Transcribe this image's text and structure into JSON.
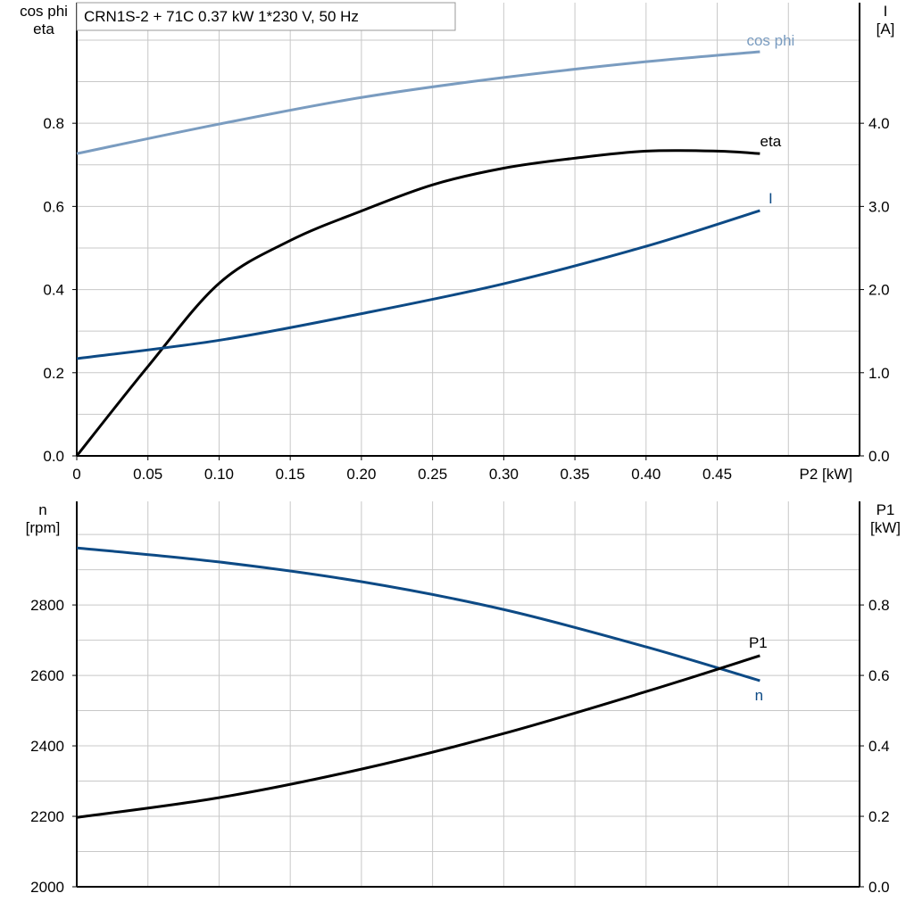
{
  "title": "CRN1S-2 + 71C   0.37 kW   1*230 V, 50 Hz",
  "colors": {
    "cos_phi": "#7a9cc0",
    "eta": "#000000",
    "I": "#0d4a85",
    "n": "#0d4a85",
    "P1": "#000000",
    "grid": "#c8c8c8"
  },
  "chart_data": [
    {
      "type": "line",
      "xlabel": "P2 [kW]",
      "ylabel_left": [
        "cos phi",
        "eta"
      ],
      "ylabel_right": [
        "I",
        "[A]"
      ],
      "xlim": [
        0,
        0.55
      ],
      "ylim_left": [
        0,
        1.09
      ],
      "ylim_right": [
        0,
        5.45
      ],
      "xticks": [
        "0",
        "0.05",
        "0.10",
        "0.15",
        "0.20",
        "0.25",
        "0.30",
        "0.35",
        "0.40",
        "0.45"
      ],
      "yticks_left": [
        "0.0",
        "0.2",
        "0.4",
        "0.6",
        "0.8"
      ],
      "yticks_right": [
        "0.0",
        "1.0",
        "2.0",
        "3.0",
        "4.0"
      ],
      "grid": true,
      "series": [
        {
          "name": "cos phi",
          "axis": "left",
          "x": [
            0,
            0.1,
            0.2,
            0.3,
            0.4,
            0.48
          ],
          "y": [
            0.727,
            0.798,
            0.862,
            0.91,
            0.948,
            0.972
          ]
        },
        {
          "name": "eta",
          "axis": "left",
          "x": [
            0,
            0.05,
            0.1,
            0.15,
            0.2,
            0.25,
            0.3,
            0.35,
            0.4,
            0.45,
            0.48
          ],
          "y": [
            0,
            0.215,
            0.415,
            0.518,
            0.589,
            0.652,
            0.692,
            0.716,
            0.733,
            0.733,
            0.727
          ]
        },
        {
          "name": "I",
          "axis": "right",
          "x": [
            0,
            0.1,
            0.2,
            0.3,
            0.4,
            0.48
          ],
          "y": [
            1.17,
            1.39,
            1.71,
            2.07,
            2.52,
            2.95
          ]
        }
      ]
    },
    {
      "type": "line",
      "ylabel_left": [
        "n",
        "[rpm]"
      ],
      "ylabel_right": [
        "P1",
        "[kW]"
      ],
      "xlim": [
        0,
        0.55
      ],
      "ylim_left": [
        2000,
        3094
      ],
      "ylim_right": [
        0,
        1.094
      ],
      "yticks_left": [
        "2000",
        "2200",
        "2400",
        "2600",
        "2800"
      ],
      "yticks_right": [
        "0.0",
        "0.2",
        "0.4",
        "0.6",
        "0.8"
      ],
      "grid": true,
      "series": [
        {
          "name": "n",
          "axis": "left",
          "x": [
            0,
            0.1,
            0.2,
            0.3,
            0.4,
            0.48
          ],
          "y": [
            2962,
            2922,
            2866,
            2787,
            2681,
            2585
          ]
        },
        {
          "name": "P1",
          "axis": "right",
          "x": [
            0,
            0.1,
            0.2,
            0.3,
            0.4,
            0.48
          ],
          "y": [
            0.197,
            0.253,
            0.334,
            0.435,
            0.554,
            0.656
          ]
        }
      ]
    }
  ]
}
